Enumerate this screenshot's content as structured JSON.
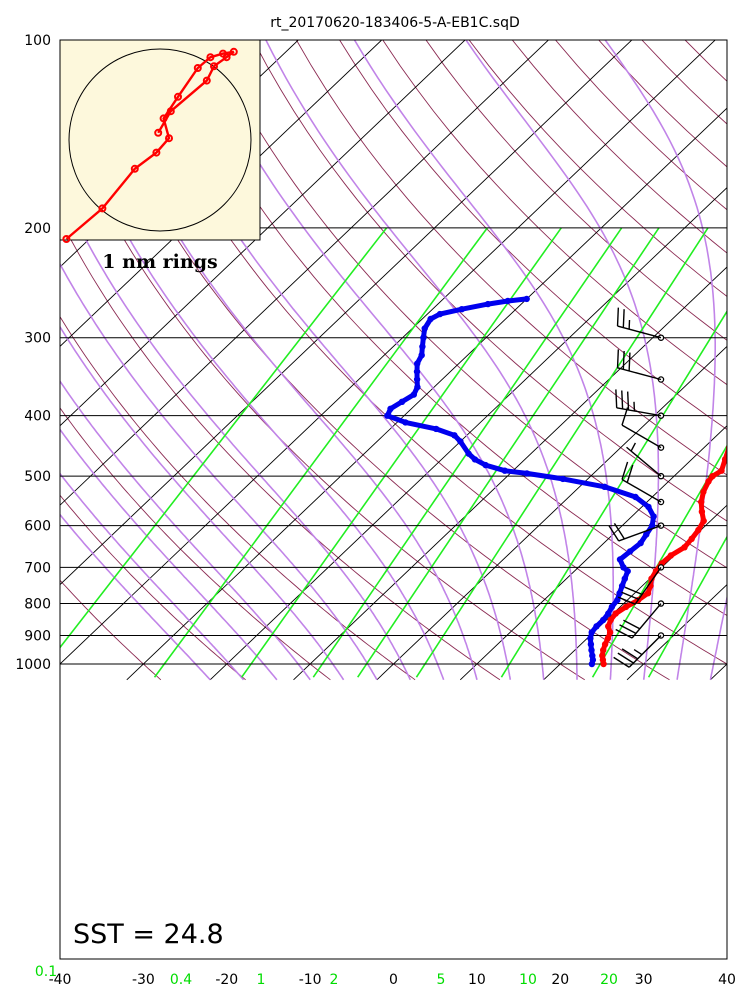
{
  "chart_data": {
    "type": "skew-t",
    "title": "rt_20170620-183406-5-A-EB1C.sqD",
    "pressure_ticks": [
      100,
      200,
      300,
      400,
      500,
      600,
      700,
      800,
      900,
      1000
    ],
    "temperature_ticks": [
      -40,
      -30,
      -20,
      -10,
      0,
      10,
      20,
      30,
      40
    ],
    "mixing_ratio_ticks": [
      0.1,
      0.4,
      1,
      2,
      5,
      10,
      20
    ],
    "xlim": [
      -40,
      40
    ],
    "ylim": [
      1050,
      100
    ],
    "sst_label": "SST = 24.8",
    "hodograph": {
      "label": "1 nm rings",
      "points": [
        [
          -5.2,
          -5.5
        ],
        [
          -3.2,
          -3.8
        ],
        [
          -1.4,
          -1.6
        ],
        [
          -0.2,
          -0.7
        ],
        [
          0.5,
          0.1
        ],
        [
          0.2,
          1.2
        ],
        [
          1.0,
          2.4
        ],
        [
          2.1,
          4.0
        ],
        [
          2.8,
          4.6
        ],
        [
          3.5,
          4.8
        ],
        [
          4.1,
          4.9
        ],
        [
          3.7,
          4.6
        ],
        [
          3.0,
          4.1
        ],
        [
          2.6,
          3.3
        ],
        [
          0.6,
          1.6
        ],
        [
          -0.1,
          0.4
        ]
      ]
    },
    "temperature": [
      [
        1000,
        25.2
      ],
      [
        985,
        24.6
      ],
      [
        970,
        24.0
      ],
      [
        950,
        23.4
      ],
      [
        930,
        22.9
      ],
      [
        910,
        22.5
      ],
      [
        890,
        22.0
      ],
      [
        870,
        21.0
      ],
      [
        850,
        20.5
      ],
      [
        830,
        20.3
      ],
      [
        810,
        20.7
      ],
      [
        790,
        21.3
      ],
      [
        770,
        21.6
      ],
      [
        750,
        21.0
      ],
      [
        730,
        20.2
      ],
      [
        710,
        19.8
      ],
      [
        690,
        19.5
      ],
      [
        670,
        19.6
      ],
      [
        650,
        20.2
      ],
      [
        630,
        20.0
      ],
      [
        610,
        19.7
      ],
      [
        590,
        19.2
      ],
      [
        570,
        17.8
      ],
      [
        550,
        16.5
      ],
      [
        530,
        15.5
      ],
      [
        510,
        14.8
      ],
      [
        500,
        14.6
      ],
      [
        490,
        15.0
      ],
      [
        470,
        14.0
      ],
      [
        450,
        13.0
      ],
      [
        430,
        11.8
      ],
      [
        410,
        10.2
      ],
      [
        400,
        9.8
      ],
      [
        395,
        10.6
      ],
      [
        390,
        11.6
      ],
      [
        380,
        12.4
      ],
      [
        370,
        13.0
      ],
      [
        360,
        12.4
      ],
      [
        350,
        11.6
      ],
      [
        340,
        10.4
      ],
      [
        330,
        9.0
      ],
      [
        320,
        7.6
      ],
      [
        310,
        6.2
      ],
      [
        300,
        4.6
      ],
      [
        290,
        3.4
      ],
      [
        280,
        2.0
      ],
      [
        270,
        1.4
      ],
      [
        262,
        0.8
      ]
    ],
    "dewpoint": [
      [
        1000,
        23.8
      ],
      [
        985,
        23.4
      ],
      [
        970,
        22.8
      ],
      [
        950,
        22.0
      ],
      [
        930,
        21.2
      ],
      [
        910,
        20.4
      ],
      [
        890,
        19.8
      ],
      [
        870,
        19.6
      ],
      [
        850,
        19.6
      ],
      [
        830,
        19.4
      ],
      [
        810,
        19.0
      ],
      [
        790,
        18.8
      ],
      [
        770,
        18.2
      ],
      [
        750,
        17.6
      ],
      [
        730,
        17.0
      ],
      [
        710,
        16.4
      ],
      [
        700,
        15.4
      ],
      [
        680,
        14.0
      ],
      [
        660,
        14.2
      ],
      [
        640,
        14.4
      ],
      [
        620,
        14.0
      ],
      [
        600,
        13.6
      ],
      [
        580,
        12.6
      ],
      [
        560,
        10.8
      ],
      [
        540,
        8.0
      ],
      [
        520,
        3.0
      ],
      [
        505,
        -3.0
      ],
      [
        495,
        -8.0
      ],
      [
        490,
        -11.0
      ],
      [
        480,
        -14.0
      ],
      [
        470,
        -16.0
      ],
      [
        460,
        -17.5
      ],
      [
        440,
        -20.0
      ],
      [
        430,
        -21.5
      ],
      [
        420,
        -24.5
      ],
      [
        410,
        -29.0
      ],
      [
        400,
        -32.0
      ],
      [
        390,
        -32.5
      ],
      [
        380,
        -32.0
      ],
      [
        370,
        -31.5
      ],
      [
        360,
        -32.0
      ],
      [
        350,
        -33.0
      ],
      [
        340,
        -34.0
      ],
      [
        330,
        -35.0
      ],
      [
        320,
        -35.5
      ],
      [
        310,
        -36.5
      ],
      [
        300,
        -37.5
      ],
      [
        290,
        -38.5
      ],
      [
        280,
        -39.0
      ],
      [
        275,
        -38.5
      ],
      [
        270,
        -36.5
      ],
      [
        265,
        -34.0
      ],
      [
        262,
        -32.0
      ],
      [
        260,
        -30.0
      ]
    ],
    "wind_barbs": [
      [
        300,
        285,
        25
      ],
      [
        350,
        285,
        30
      ],
      [
        400,
        280,
        35
      ],
      [
        450,
        300,
        10
      ],
      [
        500,
        310,
        5
      ],
      [
        550,
        300,
        20
      ],
      [
        600,
        250,
        20
      ],
      [
        700,
        215,
        30
      ],
      [
        800,
        220,
        30
      ],
      [
        900,
        225,
        35
      ]
    ]
  }
}
